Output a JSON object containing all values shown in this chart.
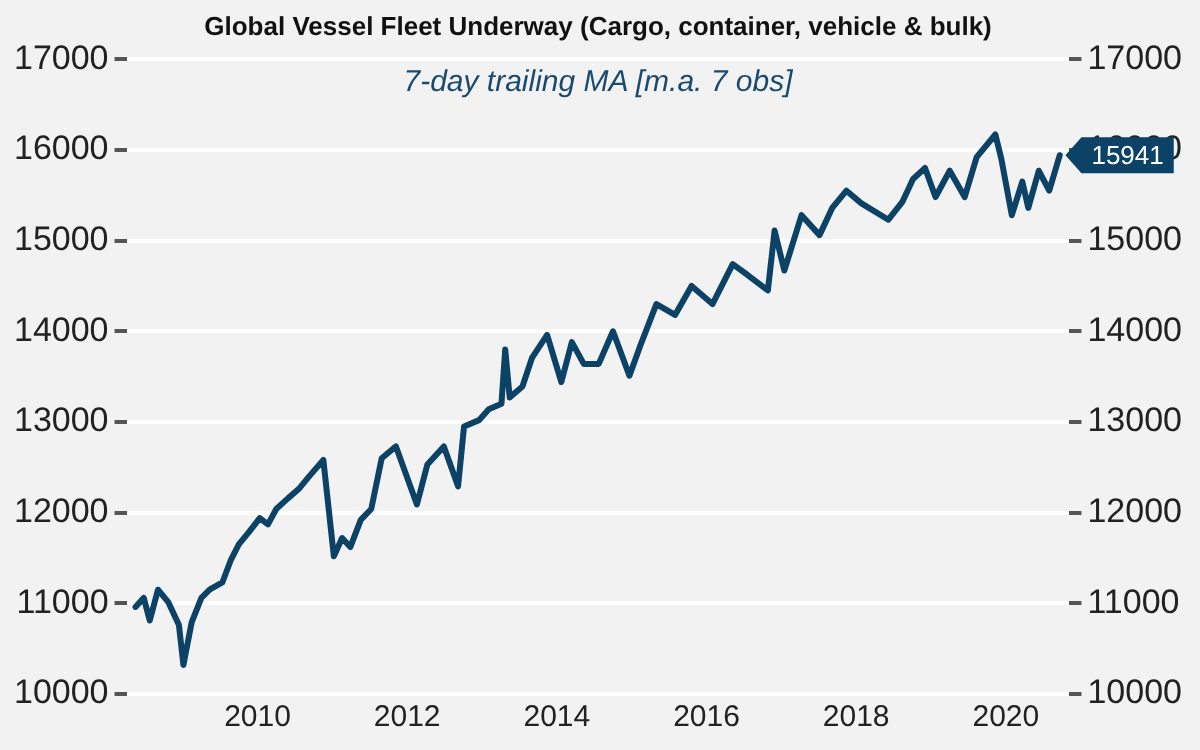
{
  "chart_data": {
    "type": "line",
    "title": "Global Vessel Fleet Underway (Cargo, container, vehicle & bulk)",
    "subtitle": "7-day trailing MA [m.a. 7 obs]",
    "x": [
      2008.37,
      2008.48,
      2008.56,
      2008.67,
      2008.81,
      2008.95,
      2009.01,
      2009.12,
      2009.25,
      2009.36,
      2009.53,
      2009.64,
      2009.75,
      2009.89,
      2010.03,
      2010.14,
      2010.25,
      2010.41,
      2010.55,
      2010.69,
      2010.88,
      2011.02,
      2011.13,
      2011.24,
      2011.38,
      2011.52,
      2011.66,
      2011.85,
      2012.13,
      2012.27,
      2012.49,
      2012.68,
      2012.76,
      2012.96,
      2013.09,
      2013.26,
      2013.31,
      2013.37,
      2013.54,
      2013.67,
      2013.87,
      2014.06,
      2014.2,
      2014.36,
      2014.56,
      2014.75,
      2014.97,
      2015.11,
      2015.33,
      2015.58,
      2015.8,
      2016.08,
      2016.35,
      2016.55,
      2016.82,
      2016.91,
      2017.04,
      2017.27,
      2017.51,
      2017.68,
      2017.87,
      2018.07,
      2018.43,
      2018.62,
      2018.76,
      2018.92,
      2019.06,
      2019.25,
      2019.45,
      2019.61,
      2019.86,
      2019.94,
      2020.08,
      2020.22,
      2020.3,
      2020.44,
      2020.58,
      2020.72
    ],
    "series": [
      {
        "color": "#0b4266",
        "values": [
          10960,
          11060,
          10810,
          11150,
          11010,
          10760,
          10320,
          10790,
          11060,
          11150,
          11230,
          11470,
          11650,
          11790,
          11940,
          11870,
          12040,
          12160,
          12260,
          12400,
          12580,
          11520,
          11720,
          11620,
          11920,
          12040,
          12600,
          12730,
          12090,
          12530,
          12730,
          12290,
          12950,
          13020,
          13140,
          13200,
          13800,
          13270,
          13390,
          13710,
          13960,
          13440,
          13880,
          13640,
          13640,
          14000,
          13510,
          13830,
          14300,
          14180,
          14500,
          14300,
          14740,
          14620,
          14450,
          15110,
          14670,
          15280,
          15060,
          15360,
          15550,
          15410,
          15230,
          15430,
          15680,
          15800,
          15480,
          15770,
          15480,
          15920,
          16170,
          15900,
          15280,
          15650,
          15360,
          15770,
          15550,
          15941
        ],
        "value_labels": [
          null,
          null,
          null,
          null,
          null,
          null,
          null,
          null,
          null,
          null,
          null,
          null,
          null,
          null,
          null,
          null,
          null,
          null,
          null,
          null,
          null,
          null,
          null,
          null,
          null,
          null,
          null,
          null,
          null,
          null,
          null,
          null,
          null,
          null,
          null,
          null,
          null,
          null,
          null,
          null,
          null,
          null,
          null,
          null,
          null,
          null,
          null,
          null,
          null,
          null,
          null,
          null,
          null,
          null,
          null,
          null,
          null,
          null,
          null,
          null,
          null,
          null,
          null,
          null,
          null,
          null,
          null,
          null,
          null,
          null,
          null,
          null,
          null,
          null,
          null,
          null,
          null,
          "15941"
        ]
      }
    ],
    "xlim": [
      2008.25,
      2020.85
    ],
    "xticks": [
      2010,
      2012,
      2014,
      2016,
      2018,
      2020
    ],
    "ylim": [
      10000,
      17000
    ],
    "yticks": [
      10000,
      11000,
      12000,
      13000,
      14000,
      15000,
      16000,
      17000
    ],
    "y2lim": [
      10000,
      17000
    ],
    "y2ticks": [
      10000,
      11000,
      12000,
      13000,
      14000,
      15000,
      16000,
      17000
    ],
    "grid": "y",
    "legend": false,
    "marker": "none",
    "line_style": "solid"
  }
}
